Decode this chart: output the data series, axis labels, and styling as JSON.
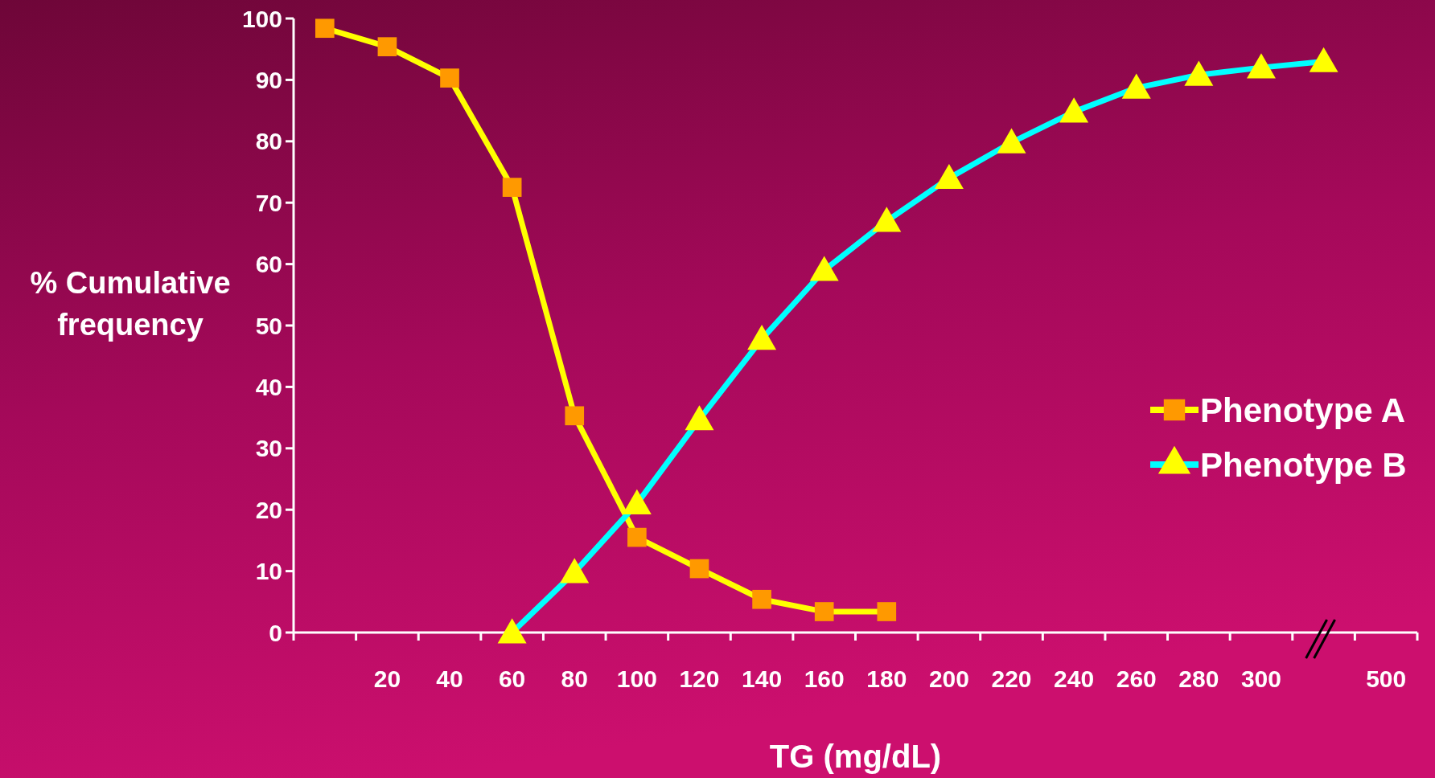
{
  "chart_data": {
    "type": "line",
    "xlabel": "TG (mg/dL)",
    "ylabel": "% Cumulative\nfrequency",
    "categories": [
      null,
      "20",
      "40",
      "60",
      "80",
      "100",
      "120",
      "140",
      "160",
      "180",
      "200",
      "220",
      "240",
      "260",
      "280",
      "300",
      null,
      "500"
    ],
    "ylim": [
      0,
      100
    ],
    "yticks": [
      0,
      10,
      20,
      30,
      40,
      50,
      60,
      70,
      80,
      90,
      100
    ],
    "grid": false,
    "legend": "right",
    "line_style": "solid",
    "series": [
      {
        "name": "Phenotype A",
        "color": "#ffff00",
        "marker": "square",
        "colors": [
          "#ff9900",
          "#ff9900",
          "#ff9900",
          "#ff9900",
          "#ff9900",
          "#ff9900",
          "#ff9900",
          "#ff9900",
          "#ff9900",
          "#ff9900",
          null,
          null,
          null,
          null,
          null,
          null,
          null,
          null
        ],
        "values": [
          98.4,
          95.4,
          90.3,
          72.5,
          35.3,
          15.5,
          10.4,
          5.4,
          3.4,
          3.4,
          null,
          null,
          null,
          null,
          null,
          null,
          null,
          null
        ]
      },
      {
        "name": "Phenotype B",
        "color": "#00ffff",
        "marker": "triangle",
        "colors": [
          null,
          null,
          null,
          "#ffff00",
          "#ffff00",
          "#ffff00",
          "#ffff00",
          "#ffff00",
          "#ffff00",
          "#ffff00",
          "#ffff00",
          "#ffff00",
          "#ffff00",
          "#ffff00",
          "#ffff00",
          "#ffff00",
          "#ffff00",
          null
        ],
        "values": [
          null,
          null,
          null,
          0,
          9.8,
          21,
          34.7,
          47.8,
          59,
          67,
          74,
          79.8,
          84.8,
          88.7,
          90.8,
          92,
          93,
          null
        ]
      }
    ]
  }
}
